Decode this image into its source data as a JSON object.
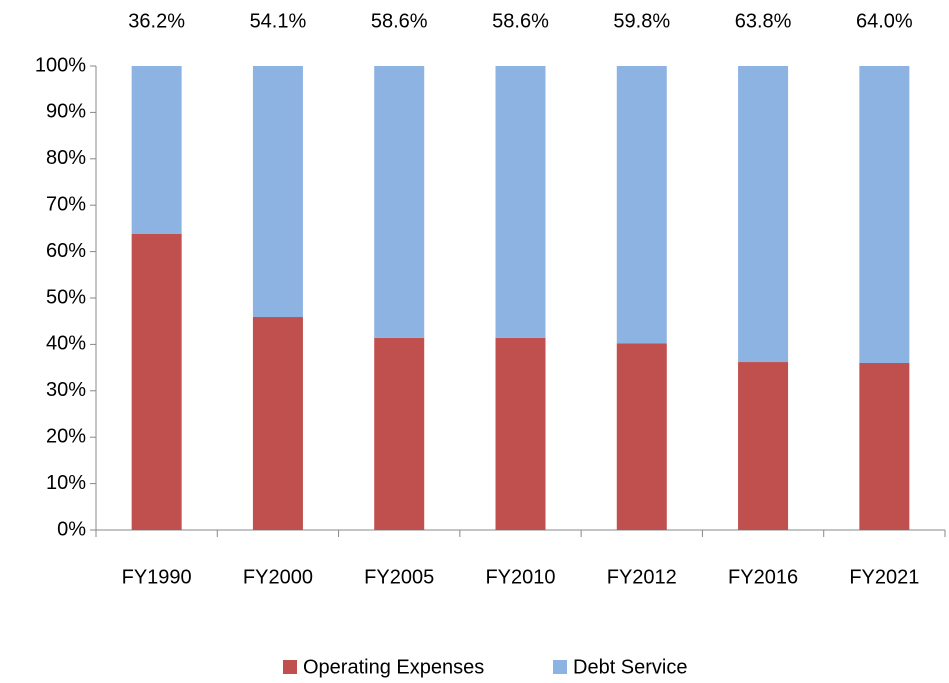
{
  "chart_data": {
    "type": "stacked_bar",
    "categories": [
      "FY1990",
      "FY2000",
      "FY2005",
      "FY2010",
      "FY2012",
      "FY2016",
      "FY2021"
    ],
    "series": [
      {
        "name": "Operating Expenses",
        "color": "#c0504d",
        "values": [
          63.8,
          45.9,
          41.4,
          41.4,
          40.2,
          36.2,
          36.0
        ]
      },
      {
        "name": "Debt Service",
        "color": "#8db3e2",
        "values": [
          36.2,
          54.1,
          58.6,
          58.6,
          59.8,
          63.8,
          64.0
        ],
        "value_labels": [
          "36.2%",
          "54.1%",
          "58.6%",
          "58.6%",
          "59.8%",
          "63.8%",
          "64.0%"
        ]
      }
    ],
    "ylim": [
      0,
      100
    ],
    "yticks": [
      {
        "value": 0,
        "label": "0%"
      },
      {
        "value": 10,
        "label": "10%"
      },
      {
        "value": 20,
        "label": "20%"
      },
      {
        "value": 30,
        "label": "30%"
      },
      {
        "value": 40,
        "label": "40%"
      },
      {
        "value": 50,
        "label": "50%"
      },
      {
        "value": 60,
        "label": "60%"
      },
      {
        "value": 70,
        "label": "70%"
      },
      {
        "value": 80,
        "label": "80%"
      },
      {
        "value": 90,
        "label": "90%"
      },
      {
        "value": 100,
        "label": "100%"
      }
    ],
    "legend": "bottom"
  }
}
